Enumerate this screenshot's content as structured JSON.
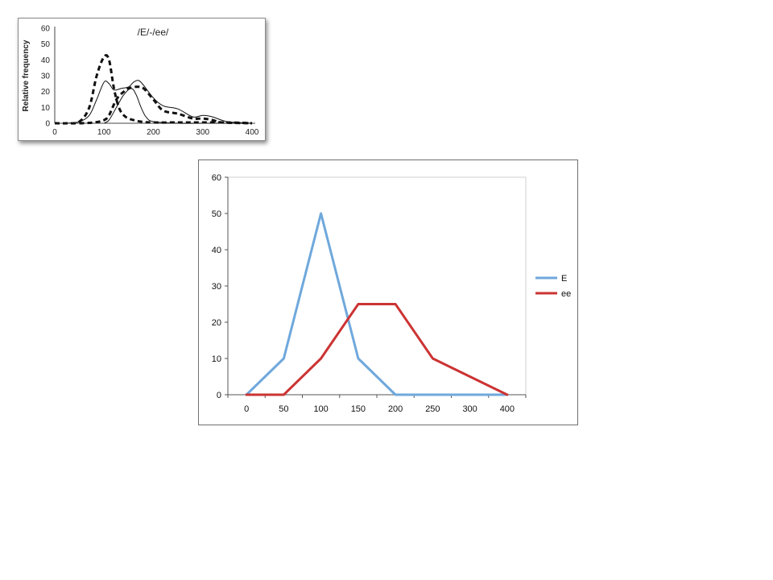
{
  "chart_data": [
    {
      "type": "line",
      "title": "/E/-/ee/",
      "xlabel": "",
      "ylabel": "Relative frequency",
      "xlim": [
        0,
        400
      ],
      "ylim": [
        0,
        60
      ],
      "x_ticks": [
        0,
        100,
        200,
        300,
        400
      ],
      "y_ticks": [
        0,
        10,
        20,
        30,
        40,
        50,
        60
      ],
      "grid": false,
      "legend": "none",
      "series": [
        {
          "style": "dashed-bold",
          "x": [
            0,
            25,
            50,
            70,
            85,
            100,
            110,
            120,
            130,
            140,
            150,
            160,
            175,
            200,
            250,
            300,
            350,
            400
          ],
          "y": [
            0,
            0,
            1,
            10,
            30,
            42,
            40,
            22,
            10,
            5,
            3,
            2,
            1,
            0.5,
            0.5,
            0.5,
            0.5,
            0
          ]
        },
        {
          "style": "solid-thin",
          "x": [
            25,
            50,
            70,
            85,
            100,
            110,
            120,
            135,
            150,
            160,
            170,
            180,
            200,
            220,
            250,
            280,
            300,
            320,
            350,
            400
          ],
          "y": [
            0,
            1,
            5,
            15,
            26,
            25,
            21,
            22,
            23,
            26,
            27,
            24,
            16,
            11,
            9,
            4,
            5,
            4,
            1,
            0
          ]
        },
        {
          "style": "dashed-bold",
          "x": [
            50,
            80,
            100,
            110,
            125,
            140,
            150,
            165,
            180,
            200,
            220,
            250,
            280,
            300,
            320,
            340,
            400
          ],
          "y": [
            0,
            0.5,
            2,
            5,
            15,
            20,
            22,
            23,
            22,
            15,
            8,
            6,
            3,
            3,
            2,
            0.5,
            0
          ]
        },
        {
          "style": "solid-thin",
          "x": [
            100,
            110,
            125,
            140,
            155,
            165,
            175,
            185,
            200,
            250,
            300,
            400
          ],
          "y": [
            0,
            2,
            10,
            18,
            22,
            18,
            10,
            4,
            1,
            0,
            0,
            0
          ]
        }
      ]
    },
    {
      "type": "line",
      "title": "",
      "xlabel": "",
      "ylabel": "",
      "categories": [
        "0",
        "50",
        "100",
        "150",
        "200",
        "250",
        "300",
        "400"
      ],
      "ylim": [
        0,
        60
      ],
      "y_ticks": [
        0,
        10,
        20,
        30,
        40,
        50,
        60
      ],
      "grid": false,
      "legend": "right",
      "series": [
        {
          "name": "E",
          "color": "#6fa8dc",
          "values": [
            0,
            10,
            50,
            10,
            0,
            0,
            0,
            0
          ]
        },
        {
          "name": "ee",
          "color": "#cc3333",
          "values": [
            0,
            0,
            10,
            25,
            25,
            10,
            5,
            0
          ]
        }
      ]
    }
  ]
}
